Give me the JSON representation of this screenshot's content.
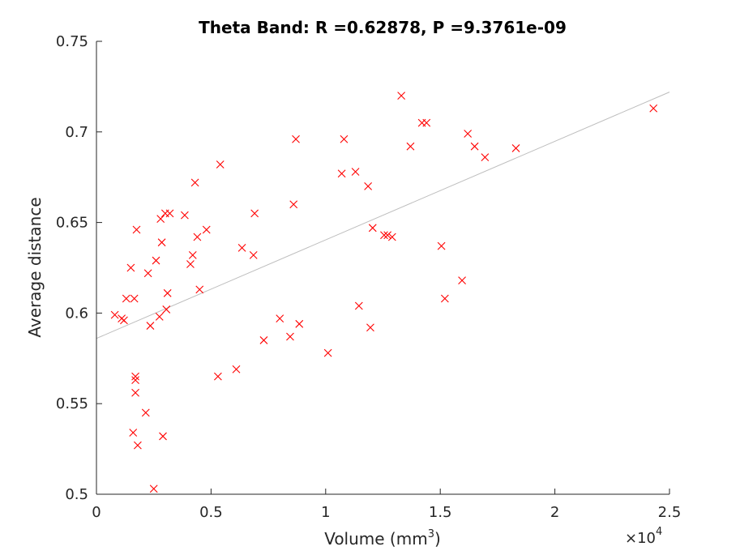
{
  "chart_data": {
    "type": "scatter",
    "title": "Theta Band: R =0.62878, P =9.3761e-09",
    "xlabel_main": "Volume (mm",
    "xlabel_sup": "3",
    "xlabel_close": ")",
    "ylabel": "Average distance",
    "x_exponent_base": "×10",
    "x_exponent_power": "4",
    "xlim": [
      0,
      25000
    ],
    "ylim": [
      0.5,
      0.75
    ],
    "xticks": [
      0,
      5000,
      10000,
      15000,
      20000,
      25000
    ],
    "xtick_labels": [
      "0",
      "0.5",
      "1",
      "1.5",
      "2",
      "2.5"
    ],
    "yticks": [
      0.5,
      0.55,
      0.6,
      0.65,
      0.7,
      0.75
    ],
    "ytick_labels": [
      "0.5",
      "0.55",
      "0.6",
      "0.65",
      "0.7",
      "0.75"
    ],
    "marker": "x",
    "marker_color": "#ff0000",
    "fit_color": "#bdbdbd",
    "fit_line": {
      "x": [
        0,
        25000
      ],
      "y": [
        0.586,
        0.722
      ]
    },
    "grid": false,
    "points": {
      "x": [
        800,
        1100,
        1200,
        1300,
        1500,
        1600,
        1650,
        1700,
        1700,
        1700,
        1750,
        1800,
        2150,
        2250,
        2350,
        2500,
        2600,
        2750,
        2800,
        2850,
        2900,
        3000,
        3050,
        3100,
        3200,
        3850,
        4100,
        4200,
        4300,
        4400,
        4500,
        4800,
        5300,
        5400,
        6100,
        6350,
        6850,
        6900,
        7300,
        8000,
        8450,
        8600,
        8700,
        8850,
        10100,
        10700,
        10800,
        11300,
        11450,
        11850,
        11950,
        12050,
        12550,
        12700,
        12900,
        13300,
        13700,
        14200,
        14400,
        15050,
        15200,
        15950,
        16200,
        16500,
        16950,
        18300,
        24300
      ],
      "y": [
        0.599,
        0.597,
        0.596,
        0.608,
        0.625,
        0.534,
        0.608,
        0.556,
        0.565,
        0.563,
        0.646,
        0.527,
        0.545,
        0.622,
        0.593,
        0.503,
        0.629,
        0.598,
        0.652,
        0.639,
        0.532,
        0.655,
        0.602,
        0.611,
        0.655,
        0.654,
        0.627,
        0.632,
        0.672,
        0.642,
        0.613,
        0.646,
        0.565,
        0.682,
        0.569,
        0.636,
        0.632,
        0.655,
        0.585,
        0.597,
        0.587,
        0.66,
        0.696,
        0.594,
        0.578,
        0.677,
        0.696,
        0.678,
        0.604,
        0.67,
        0.592,
        0.647,
        0.643,
        0.643,
        0.642,
        0.72,
        0.692,
        0.705,
        0.705,
        0.637,
        0.608,
        0.618,
        0.699,
        0.692,
        0.686,
        0.691,
        0.713
      ]
    }
  }
}
